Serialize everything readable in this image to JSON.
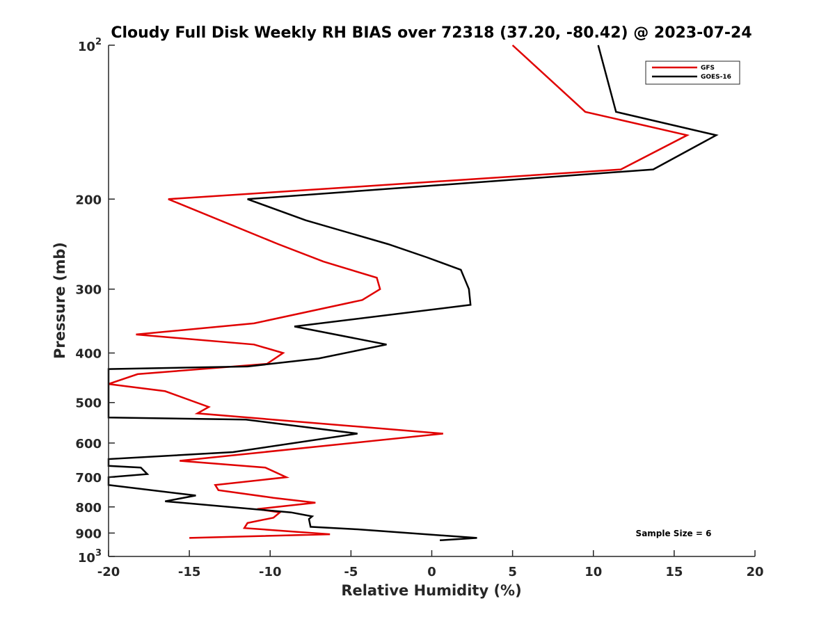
{
  "chart_data": {
    "type": "line",
    "title": "Cloudy Full Disk Weekly RH BIAS over 72318 (37.20, -80.42) @ 2023-07-24",
    "xlabel": "Relative Humidity (%)",
    "ylabel": "Pressure (mb)",
    "xlim": [
      -20,
      20
    ],
    "ylim": [
      100,
      1000
    ],
    "yscale": "log",
    "y_reversed": true,
    "x_ticks": [
      -20,
      -15,
      -10,
      -5,
      0,
      5,
      10,
      15,
      20
    ],
    "x_tick_labels": [
      "-20",
      "-15",
      "-10",
      "-5",
      "0",
      "5",
      "10",
      "15",
      "20"
    ],
    "y_ticks": [
      200,
      300,
      400,
      500,
      600,
      700,
      800,
      900
    ],
    "y_tick_labels": [
      "200",
      "300",
      "400",
      "500",
      "600",
      "700",
      "800",
      "900"
    ],
    "y_edge_labels": [
      {
        "value": 100,
        "base": "10",
        "exp": "2"
      },
      {
        "value": 1000,
        "base": "10",
        "exp": "3"
      }
    ],
    "grid": false,
    "legend_position": "top-right",
    "annotation": "Sample Size = 6",
    "series": [
      {
        "name": "GFS",
        "color": "#e00000",
        "points": [
          [
            5.0,
            100
          ],
          [
            9.5,
            135
          ],
          [
            15.8,
            150
          ],
          [
            11.7,
            175
          ],
          [
            -16.3,
            200
          ],
          [
            -9.5,
            245
          ],
          [
            -6.7,
            265
          ],
          [
            -3.4,
            285
          ],
          [
            -3.2,
            300
          ],
          [
            -4.3,
            315
          ],
          [
            -11.0,
            350
          ],
          [
            -18.3,
            368
          ],
          [
            -11.0,
            385
          ],
          [
            -9.2,
            400
          ],
          [
            -10.2,
            420
          ],
          [
            -18.2,
            440
          ],
          [
            -20.0,
            460
          ],
          [
            -16.5,
            475
          ],
          [
            -13.8,
            510
          ],
          [
            -14.5,
            525
          ],
          [
            0.7,
            575
          ],
          [
            -15.6,
            650
          ],
          [
            -10.3,
            670
          ],
          [
            -9.0,
            700
          ],
          [
            -13.4,
            725
          ],
          [
            -13.2,
            742
          ],
          [
            -9.8,
            768
          ],
          [
            -7.2,
            785
          ],
          [
            -10.8,
            808
          ],
          [
            -9.4,
            820
          ],
          [
            -9.8,
            840
          ],
          [
            -11.4,
            860
          ],
          [
            -11.6,
            880
          ],
          [
            -6.3,
            905
          ],
          [
            -15.0,
            920
          ]
        ]
      },
      {
        "name": "GOES-16",
        "color": "#000000",
        "points": [
          [
            10.3,
            100
          ],
          [
            11.4,
            135
          ],
          [
            17.6,
            150
          ],
          [
            13.7,
            175
          ],
          [
            -11.4,
            200
          ],
          [
            -7.8,
            220
          ],
          [
            -2.7,
            245
          ],
          [
            -0.3,
            260
          ],
          [
            1.8,
            275
          ],
          [
            2.3,
            300
          ],
          [
            2.4,
            322
          ],
          [
            -8.5,
            355
          ],
          [
            -2.8,
            385
          ],
          [
            -7.0,
            410
          ],
          [
            -11.4,
            425
          ],
          [
            -20.0,
            430
          ],
          [
            -20.0,
            535
          ],
          [
            -11.5,
            540
          ],
          [
            -4.6,
            575
          ],
          [
            -12.3,
            625
          ],
          [
            -20.0,
            645
          ],
          [
            -20.0,
            665
          ],
          [
            -18.0,
            670
          ],
          [
            -17.6,
            690
          ],
          [
            -20.0,
            700
          ],
          [
            -20.0,
            725
          ],
          [
            -14.6,
            760
          ],
          [
            -16.5,
            780
          ],
          [
            -8.7,
            820
          ],
          [
            -7.4,
            835
          ],
          [
            -7.6,
            845
          ],
          [
            -7.5,
            875
          ],
          [
            -4.6,
            885
          ],
          [
            2.8,
            920
          ],
          [
            0.5,
            930
          ]
        ]
      }
    ]
  }
}
